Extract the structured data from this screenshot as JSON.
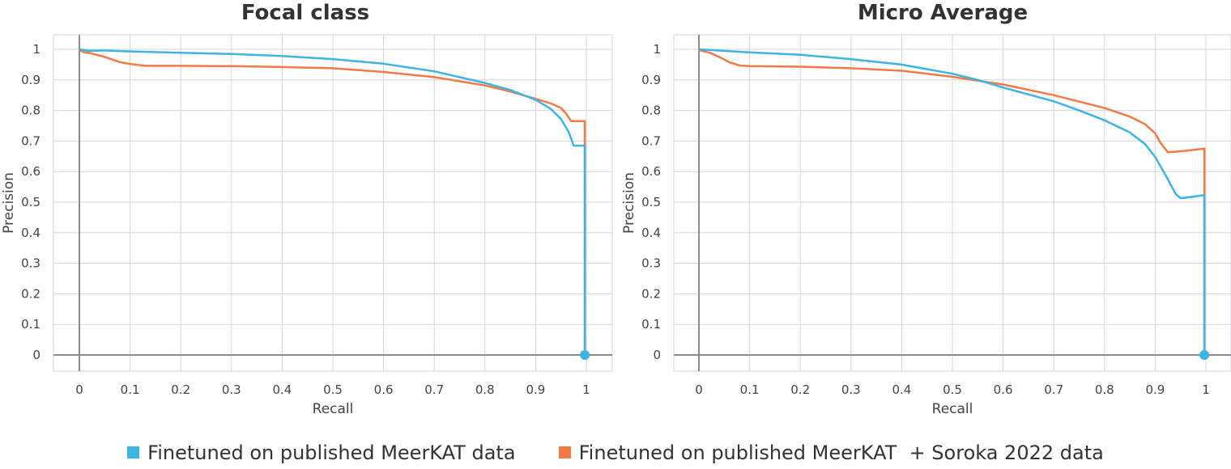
{
  "chart_data": [
    {
      "type": "line",
      "title": "Focal class",
      "xlabel": "Recall",
      "ylabel": "Precision",
      "xlim": [
        0,
        1
      ],
      "ylim": [
        0,
        1
      ],
      "xticks": [
        "0",
        "0.1",
        "0.2",
        "0.3",
        "0.4",
        "0.5",
        "0.6",
        "0.7",
        "0.8",
        "0.9",
        "1"
      ],
      "yticks": [
        "0",
        "0.1",
        "0.2",
        "0.3",
        "0.4",
        "0.5",
        "0.6",
        "0.7",
        "0.8",
        "0.9",
        "1"
      ],
      "grid": true,
      "series": [
        {
          "name": "Finetuned on published MeerKAT data",
          "color": "#3cb4e6",
          "points": [
            [
              0.0,
              1.0
            ],
            [
              0.02,
              0.995
            ],
            [
              0.05,
              0.996
            ],
            [
              0.1,
              0.993
            ],
            [
              0.2,
              0.989
            ],
            [
              0.3,
              0.985
            ],
            [
              0.4,
              0.978
            ],
            [
              0.5,
              0.968
            ],
            [
              0.6,
              0.953
            ],
            [
              0.7,
              0.928
            ],
            [
              0.8,
              0.89
            ],
            [
              0.85,
              0.867
            ],
            [
              0.9,
              0.835
            ],
            [
              0.93,
              0.805
            ],
            [
              0.95,
              0.772
            ],
            [
              0.965,
              0.73
            ],
            [
              0.975,
              0.685
            ],
            [
              0.997,
              0.685
            ],
            [
              0.997,
              0.0
            ]
          ]
        },
        {
          "name": "Finetuned on published MeerKAT  + Soroka 2022 data",
          "color": "#f47a45",
          "points": [
            [
              0.0,
              0.997
            ],
            [
              0.01,
              0.99
            ],
            [
              0.02,
              0.988
            ],
            [
              0.05,
              0.975
            ],
            [
              0.08,
              0.958
            ],
            [
              0.1,
              0.952
            ],
            [
              0.13,
              0.946
            ],
            [
              0.2,
              0.946
            ],
            [
              0.3,
              0.945
            ],
            [
              0.4,
              0.942
            ],
            [
              0.5,
              0.938
            ],
            [
              0.6,
              0.926
            ],
            [
              0.7,
              0.909
            ],
            [
              0.8,
              0.882
            ],
            [
              0.85,
              0.862
            ],
            [
              0.9,
              0.838
            ],
            [
              0.93,
              0.823
            ],
            [
              0.95,
              0.808
            ],
            [
              0.96,
              0.79
            ],
            [
              0.97,
              0.765
            ],
            [
              0.997,
              0.765
            ],
            [
              0.997,
              0.0
            ]
          ]
        }
      ]
    },
    {
      "type": "line",
      "title": "Micro Average",
      "xlabel": "Recall",
      "ylabel": "Precision",
      "xlim": [
        0,
        1
      ],
      "ylim": [
        0,
        1
      ],
      "xticks": [
        "0",
        "0.1",
        "0.2",
        "0.3",
        "0.4",
        "0.5",
        "0.6",
        "0.7",
        "0.8",
        "0.9",
        "1"
      ],
      "yticks": [
        "0",
        "0.1",
        "0.2",
        "0.3",
        "0.4",
        "0.5",
        "0.6",
        "0.7",
        "0.8",
        "0.9",
        "1"
      ],
      "grid": true,
      "series": [
        {
          "name": "Finetuned on published MeerKAT data",
          "color": "#3cb4e6",
          "points": [
            [
              0.0,
              1.0
            ],
            [
              0.05,
              0.995
            ],
            [
              0.1,
              0.99
            ],
            [
              0.2,
              0.982
            ],
            [
              0.3,
              0.968
            ],
            [
              0.4,
              0.95
            ],
            [
              0.5,
              0.92
            ],
            [
              0.55,
              0.9
            ],
            [
              0.6,
              0.875
            ],
            [
              0.7,
              0.83
            ],
            [
              0.75,
              0.8
            ],
            [
              0.8,
              0.768
            ],
            [
              0.85,
              0.728
            ],
            [
              0.88,
              0.69
            ],
            [
              0.9,
              0.648
            ],
            [
              0.92,
              0.59
            ],
            [
              0.94,
              0.528
            ],
            [
              0.95,
              0.513
            ],
            [
              0.975,
              0.518
            ],
            [
              0.997,
              0.523
            ],
            [
              0.997,
              0.0
            ]
          ]
        },
        {
          "name": "Finetuned on published MeerKAT  + Soroka 2022 data",
          "color": "#f47a45",
          "points": [
            [
              0.0,
              0.997
            ],
            [
              0.02,
              0.99
            ],
            [
              0.04,
              0.975
            ],
            [
              0.06,
              0.958
            ],
            [
              0.08,
              0.947
            ],
            [
              0.1,
              0.945
            ],
            [
              0.2,
              0.943
            ],
            [
              0.3,
              0.938
            ],
            [
              0.4,
              0.93
            ],
            [
              0.5,
              0.91
            ],
            [
              0.6,
              0.885
            ],
            [
              0.7,
              0.85
            ],
            [
              0.8,
              0.808
            ],
            [
              0.85,
              0.78
            ],
            [
              0.88,
              0.755
            ],
            [
              0.9,
              0.725
            ],
            [
              0.91,
              0.695
            ],
            [
              0.925,
              0.663
            ],
            [
              0.96,
              0.668
            ],
            [
              0.997,
              0.675
            ],
            [
              0.997,
              0.0
            ]
          ]
        }
      ]
    }
  ],
  "legend": [
    {
      "label": "Finetuned on published MeerKAT data",
      "color": "#3cb4e6"
    },
    {
      "label": "Finetuned on published MeerKAT  + Soroka 2022 data",
      "color": "#f47a45"
    }
  ]
}
